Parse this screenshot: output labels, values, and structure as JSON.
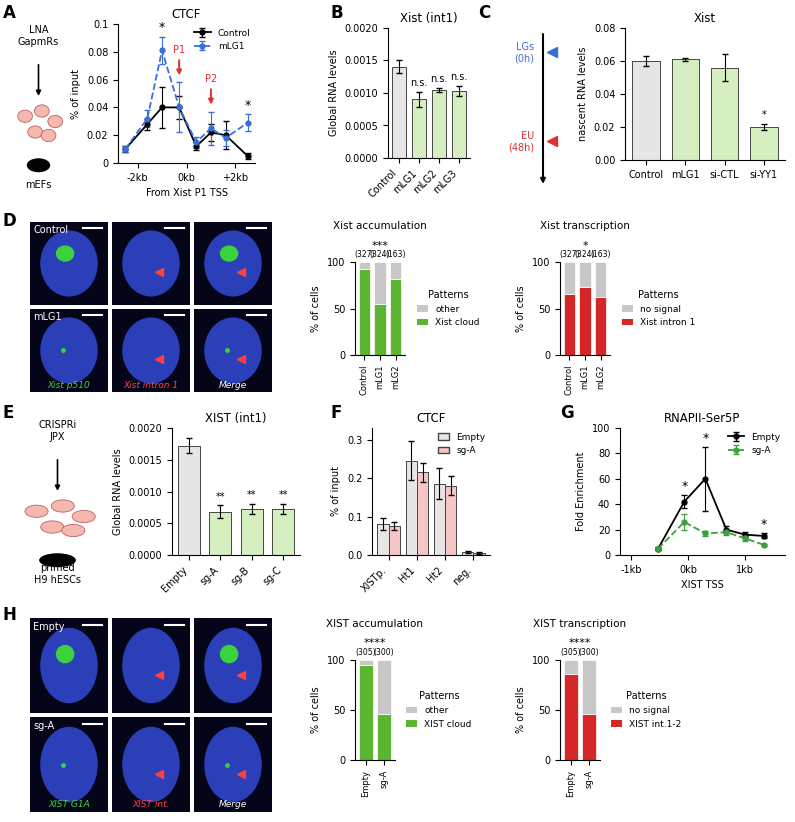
{
  "chart_data": [
    {
      "panel": "A",
      "type": "line",
      "title": "CTCF",
      "x_label": "From Xist P1 TSS",
      "y_label": "% of input",
      "schematic": [
        "LNA\nGapmRs",
        "mEFs"
      ],
      "x": [
        -2.5,
        -1.6,
        -1.0,
        -0.3,
        0.4,
        1.0,
        1.6,
        2.5
      ],
      "series": [
        {
          "name": "Control",
          "color": "#000000",
          "line_style": "solid",
          "marker": "o",
          "values": [
            0.01,
            0.028,
            0.04,
            0.04,
            0.012,
            0.022,
            0.02,
            0.005
          ],
          "errors": [
            0.002,
            0.004,
            0.015,
            0.008,
            0.003,
            0.006,
            0.01,
            0.002
          ]
        },
        {
          "name": "mLG1",
          "color": "#3a6fd8",
          "line_style": "dashed",
          "marker": "o",
          "values": [
            0.01,
            0.032,
            0.081,
            0.04,
            0.015,
            0.025,
            0.018,
            0.029
          ],
          "errors": [
            0.002,
            0.006,
            0.01,
            0.018,
            0.004,
            0.012,
            0.006,
            0.006
          ]
        }
      ],
      "xlim": [
        -2.8,
        2.8
      ],
      "xticks": [
        {
          "value": -2,
          "label": "-2kb"
        },
        {
          "value": 0,
          "label": "0kb"
        },
        {
          "value": 2,
          "label": "+2kb"
        }
      ],
      "ylim": [
        0,
        0.1
      ],
      "yticks": [
        0,
        0.02,
        0.04,
        0.06,
        0.08,
        0.1
      ],
      "legend": "upper right",
      "annotations": [
        {
          "text": "*",
          "x": -1.0
        },
        {
          "text": "*",
          "x": 2.5
        }
      ],
      "arrows": [
        {
          "text": "P1",
          "x": -0.3
        },
        {
          "text": "P2",
          "x": 1.0
        }
      ]
    },
    {
      "panel": "B",
      "type": "bar",
      "title": "Xist (int1)",
      "y_label": "Global RNA levels",
      "categories": [
        "Control",
        "mLG1",
        "mLG2",
        "mLG3"
      ],
      "values": [
        0.0014,
        0.0009,
        0.00105,
        0.00103
      ],
      "errors": [
        0.0001,
        0.00012,
        3e-05,
        8e-05
      ],
      "colors": [
        "#e6e6e6",
        "#d5efc0",
        "#d5efc0",
        "#d5efc0"
      ],
      "ylim": [
        0,
        0.002
      ],
      "yticks": [
        {
          "value": 0,
          "label": "0.0000"
        },
        {
          "value": 0.0005,
          "label": "0.0005"
        },
        {
          "value": 0.001,
          "label": "0.0010"
        },
        {
          "value": 0.0015,
          "label": "0.0015"
        },
        {
          "value": 0.002,
          "label": "0.0020"
        }
      ],
      "annotations": [
        {
          "text": "n.s.",
          "category": "mLG1"
        },
        {
          "text": "n.s.",
          "category": "mLG2"
        },
        {
          "text": "n.s.",
          "category": "mLG3"
        }
      ]
    },
    {
      "panel": "C",
      "type": "bar",
      "title": "Xist",
      "y_label": "nascent RNA levels",
      "schematic": [
        "LGs\n(0h)",
        "EU\n(48h)"
      ],
      "categories": [
        "Control",
        "mLG1",
        "si-CTL",
        "si-YY1"
      ],
      "values": [
        0.06,
        0.061,
        0.056,
        0.02
      ],
      "errors": [
        0.003,
        0.001,
        0.008,
        0.002
      ],
      "colors": [
        "#e6e6e6",
        "#d5efc0",
        "#d5efc0",
        "#d5efc0"
      ],
      "ylim": [
        0,
        0.08
      ],
      "yticks": [
        {
          "value": 0,
          "label": "0.00"
        },
        0.02,
        0.04,
        0.06,
        0.08
      ],
      "annotations": [
        {
          "text": "*",
          "category": "si-YY1"
        }
      ]
    },
    {
      "type": "bar",
      "stacked": true,
      "title": "Xist accumulation",
      "y_label": "% of cells",
      "categories": [
        "Control",
        "mLG1",
        "mLG2"
      ],
      "count_labels": [
        "(327)",
        "(324)",
        "(163)"
      ],
      "series": [
        {
          "name": "Xist cloud",
          "color": "#5cb530",
          "values": [
            92,
            55,
            82
          ]
        },
        {
          "name": "other",
          "color": "#c8c8c8",
          "values": [
            8,
            45,
            18
          ]
        }
      ],
      "ylim": [
        0,
        100
      ],
      "yticks": [
        0,
        50,
        100
      ],
      "legend": "right",
      "legend_title": "Patterns",
      "annotations": [
        {
          "text": "***",
          "category": "mLG1"
        }
      ]
    },
    {
      "type": "bar",
      "stacked": true,
      "title": "Xist transcription",
      "y_label": "% of cells",
      "categories": [
        "Control",
        "mLG1",
        "mLG2"
      ],
      "count_labels": [
        "(327)",
        "(324)",
        "(163)"
      ],
      "series": [
        {
          "name": "Xist intron 1",
          "color": "#d62728",
          "values": [
            66,
            73,
            62
          ]
        },
        {
          "name": "no signal",
          "color": "#c8c8c8",
          "values": [
            34,
            27,
            38
          ]
        }
      ],
      "ylim": [
        0,
        100
      ],
      "yticks": [
        0,
        50,
        100
      ],
      "legend": "right",
      "legend_title": "Patterns",
      "annotations": [
        {
          "text": "*",
          "category": "mLG1"
        }
      ]
    },
    {
      "panel": "E",
      "type": "bar",
      "title": "XIST (int1)",
      "y_label": "Global RNA levels",
      "schematic": [
        "CRISPRi\nJPX",
        "primed\nH9 hESCs"
      ],
      "categories": [
        "Empty",
        "sg-A",
        "sg-B",
        "sg-C"
      ],
      "values": [
        0.00172,
        0.00068,
        0.00073,
        0.00072
      ],
      "errors": [
        0.00012,
        0.0001,
        8e-05,
        8e-05
      ],
      "colors": [
        "#e6e6e6",
        "#d5efc0",
        "#d5efc0",
        "#d5efc0"
      ],
      "ylim": [
        0,
        0.002
      ],
      "yticks": [
        {
          "value": 0,
          "label": "0.0000"
        },
        {
          "value": 0.0005,
          "label": "0.0005"
        },
        {
          "value": 0.001,
          "label": "0.0010"
        },
        {
          "value": 0.0015,
          "label": "0.0015"
        },
        {
          "value": 0.002,
          "label": "0.0020"
        }
      ],
      "annotations": [
        {
          "text": "**",
          "category": "sg-A"
        },
        {
          "text": "**",
          "category": "sg-B"
        },
        {
          "text": "**",
          "category": "sg-C"
        }
      ]
    },
    {
      "panel": "F",
      "type": "bar",
      "title": "CTCF",
      "y_label": "% of input",
      "categories": [
        "XISTp.",
        "Ht1",
        "Ht2",
        "neg."
      ],
      "series": [
        {
          "name": "Empty",
          "color": "#e6e6e6",
          "values": [
            0.08,
            0.245,
            0.185,
            0.008
          ],
          "errors": [
            0.015,
            0.05,
            0.04,
            0.003
          ]
        },
        {
          "name": "sg-A",
          "color": "#f6c6c6",
          "values": [
            0.075,
            0.215,
            0.18,
            0.005
          ],
          "errors": [
            0.01,
            0.025,
            0.025,
            0.003
          ]
        }
      ],
      "ylim": [
        0,
        0.33
      ],
      "yticks": [
        {
          "value": 0,
          "label": "0.0"
        },
        0.1,
        0.2,
        0.3
      ],
      "legend": "upper right"
    },
    {
      "panel": "G",
      "type": "line",
      "title": "RNAPII-Ser5P",
      "x_label": "XIST TSS",
      "y_label": "Fold Enrichment",
      "x": [
        -0.53,
        -0.07,
        0.3,
        0.67,
        1.0,
        1.33
      ],
      "series": [
        {
          "name": "Empty",
          "color": "#000000",
          "line_style": "solid",
          "marker": "o",
          "values": [
            5,
            42,
            60,
            20,
            16,
            15
          ],
          "errors": [
            1,
            5,
            25,
            3,
            2,
            2
          ]
        },
        {
          "name": "sg-A",
          "color": "#3aa03a",
          "line_style": "dashed",
          "marker": "o",
          "values": [
            5,
            26,
            17,
            18,
            13,
            8
          ],
          "errors": [
            1,
            6,
            2,
            2,
            2,
            1
          ]
        }
      ],
      "xlim": [
        -1.2,
        1.7
      ],
      "xticks": [
        {
          "value": -1,
          "label": "-1kb"
        },
        {
          "value": 0,
          "label": "0kb"
        },
        {
          "value": 1,
          "label": "1kb"
        }
      ],
      "ylim": [
        0,
        100
      ],
      "yticks": [
        0,
        20,
        40,
        60,
        80,
        100
      ],
      "legend": "upper right",
      "annotations": [
        {
          "text": "*",
          "x": -0.07
        },
        {
          "text": "*",
          "x": 0.3
        },
        {
          "text": "*",
          "x": 1.33
        }
      ]
    },
    {
      "type": "bar",
      "stacked": true,
      "title": "XIST accumulation",
      "y_label": "% of cells",
      "categories": [
        "Empty",
        "sg-A"
      ],
      "count_labels": [
        "(305)",
        "(300)"
      ],
      "series": [
        {
          "name": "XIST cloud",
          "color": "#5cb530",
          "values": [
            95,
            46
          ]
        },
        {
          "name": "other",
          "color": "#c8c8c8",
          "values": [
            5,
            54
          ]
        }
      ],
      "ylim": [
        0,
        100
      ],
      "yticks": [
        0,
        50,
        100
      ],
      "legend": "right",
      "legend_title": "Patterns",
      "annotations": [
        {
          "text": "****"
        }
      ]
    },
    {
      "type": "bar",
      "stacked": true,
      "title": "XIST transcription",
      "y_label": "% of cells",
      "categories": [
        "Empty",
        "sg-A"
      ],
      "count_labels": [
        "(305)",
        "(300)"
      ],
      "series": [
        {
          "name": "XIST int.1-2",
          "color": "#d62728",
          "values": [
            86,
            46
          ]
        },
        {
          "name": "no signal",
          "color": "#c8c8c8",
          "values": [
            14,
            54
          ]
        }
      ],
      "ylim": [
        0,
        100
      ],
      "yticks": [
        0,
        50,
        100
      ],
      "legend": "right",
      "legend_title": "Patterns",
      "annotations": [
        {
          "text": "****"
        }
      ]
    }
  ],
  "images": [
    {
      "panel": "D",
      "rows": [
        "Control",
        "mLG1"
      ],
      "channels": [
        "Xist p510",
        "Xist intron 1",
        "Merge"
      ],
      "channel_colors": [
        "#3cd23c",
        "#ff4040",
        "#ffffff"
      ]
    },
    {
      "panel": "H",
      "rows": [
        "Empty",
        "sg-A"
      ],
      "channels": [
        "XIST G1A",
        "XIST int.",
        "Merge"
      ],
      "channel_colors": [
        "#3cd23c",
        "#ff4040",
        "#ffffff"
      ]
    }
  ]
}
